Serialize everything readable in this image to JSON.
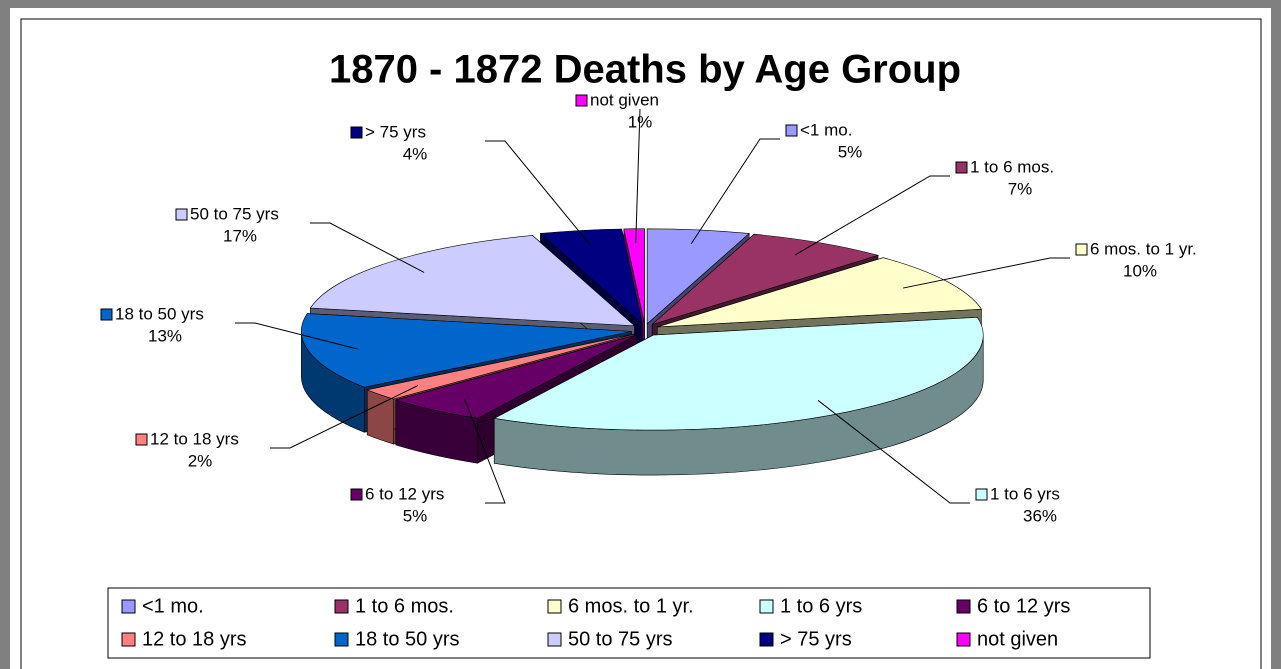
{
  "chart_data": {
    "type": "pie",
    "title": "1870 - 1872 Deaths by Age Group",
    "categories": [
      "<1 mo.",
      "1 to 6 mos.",
      "6 mos. to 1 yr.",
      "1 to 6 yrs",
      "6 to 12 yrs",
      "12 to 18 yrs",
      "18 to 50 yrs",
      "50 to 75 yrs",
      "> 75 yrs",
      "not given"
    ],
    "values": [
      5,
      7,
      10,
      36,
      5,
      2,
      13,
      17,
      4,
      1
    ],
    "value_labels": [
      "5%",
      "7%",
      "10%",
      "36%",
      "5%",
      "2%",
      "13%",
      "17%",
      "4%",
      "1%"
    ],
    "colors": [
      "#9999ff",
      "#993366",
      "#ffffcc",
      "#ccffff",
      "#660066",
      "#ff8080",
      "#0066cc",
      "#ccccff",
      "#000080",
      "#ff00ff"
    ],
    "legend": "bottom"
  }
}
